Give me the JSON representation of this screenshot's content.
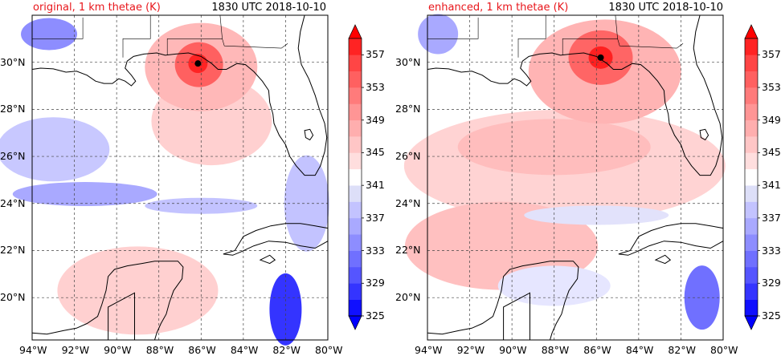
{
  "panels": [
    {
      "title": "original, 1 km thetae (K)",
      "valid_time": "1830 UTC 2018-10-10",
      "hurricane_center": {
        "lon": -86.15,
        "lat": 29.95
      }
    },
    {
      "title": "enhanced, 1 km thetae (K)",
      "valid_time": "1830 UTC 2018-10-10",
      "hurricane_center": {
        "lon": -85.8,
        "lat": 30.2
      }
    }
  ],
  "map": {
    "lon_range": [
      -94,
      -80
    ],
    "lat_range": [
      18.2,
      32
    ],
    "lon_ticks": [
      {
        "value": -94,
        "label": "94°W"
      },
      {
        "value": -92,
        "label": "92°W"
      },
      {
        "value": -90,
        "label": "90°W"
      },
      {
        "value": -88,
        "label": "88°W"
      },
      {
        "value": -86,
        "label": "86°W"
      },
      {
        "value": -84,
        "label": "84°W"
      },
      {
        "value": -82,
        "label": "82°W"
      },
      {
        "value": -80,
        "label": "80°W"
      }
    ],
    "lat_ticks": [
      {
        "value": 20,
        "label": "20°N"
      },
      {
        "value": 22,
        "label": "22°N"
      },
      {
        "value": 24,
        "label": "24°N"
      },
      {
        "value": 26,
        "label": "26°N"
      },
      {
        "value": 28,
        "label": "28°N"
      },
      {
        "value": 30,
        "label": "30°N"
      }
    ],
    "grid": "dashed"
  },
  "colorbar": {
    "labels": [
      "325",
      "329",
      "333",
      "337",
      "341",
      "345",
      "349",
      "353",
      "357"
    ],
    "levels": [
      325,
      327,
      329,
      331,
      333,
      335,
      337,
      339,
      341,
      343,
      345,
      347,
      349,
      351,
      353,
      355,
      357,
      359
    ],
    "colors": [
      "#1010ff",
      "#3434ff",
      "#5555ff",
      "#7070ff",
      "#8d8dff",
      "#a9a9ff",
      "#c3c3ff",
      "#dddff8",
      "#ffffff",
      "#ffdede",
      "#ffc6c6",
      "#ffaeae",
      "#ff9595",
      "#ff7b7b",
      "#ff6060",
      "#ff4545",
      "#ff2323"
    ],
    "under_color": "#0000ff",
    "over_color": "#ff0000",
    "extend": "both"
  }
}
